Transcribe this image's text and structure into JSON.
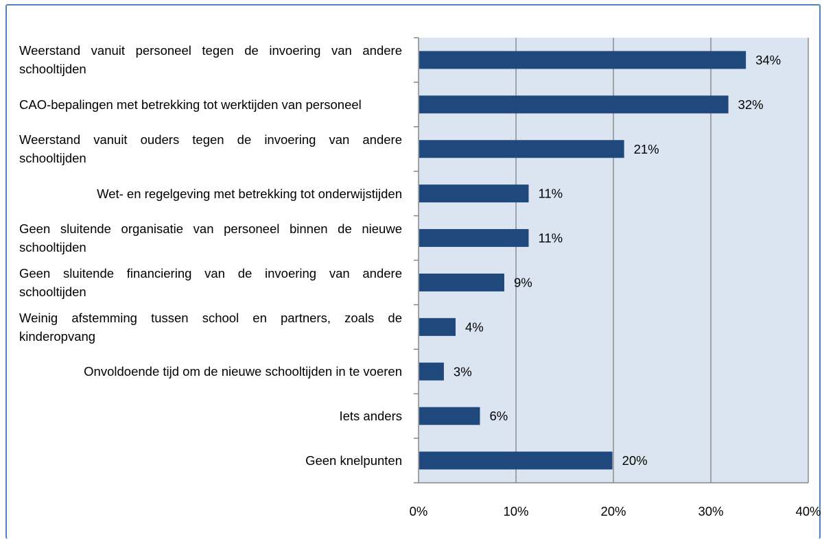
{
  "chart_data": {
    "type": "bar",
    "orientation": "horizontal",
    "categories": [
      "Weerstand vanuit personeel tegen de invoering van andere schooltijden",
      "CAO-bepalingen met betrekking tot werktijden van personeel",
      "Weerstand vanuit ouders tegen de invoering van andere schooltijden",
      "Wet- en regelgeving met betrekking tot onderwijstijden",
      "Geen sluitende organisatie van personeel binnen de nieuwe schooltijden",
      "Geen sluitende financiering van de invoering van andere schooltijden",
      "Weinig afstemming tussen school en partners, zoals de kinderopvang",
      "Onvoldoende tijd om de nieuwe schooltijden in te voeren",
      "Iets anders",
      "Geen knelpunten"
    ],
    "values": [
      33.6,
      31.8,
      21.1,
      11.3,
      11.3,
      8.8,
      3.8,
      2.6,
      6.3,
      19.9
    ],
    "value_labels": [
      "34%",
      "32%",
      "21%",
      "11%",
      "11%",
      "9%",
      "4%",
      "3%",
      "6%",
      "20%"
    ],
    "xlim": [
      0,
      40
    ],
    "x_ticks": [
      "0%",
      "10%",
      "20%",
      "30%",
      "40%"
    ],
    "x_tick_values": [
      0,
      10,
      20,
      30,
      40
    ],
    "title": "",
    "xlabel": "",
    "ylabel": "",
    "grid": "vertical",
    "legend": "none",
    "colors": {
      "bar": "#1f497d",
      "plot_background": "#dbe5f1",
      "grid": "#8c8c8c",
      "frame": "#4f81bd"
    }
  }
}
